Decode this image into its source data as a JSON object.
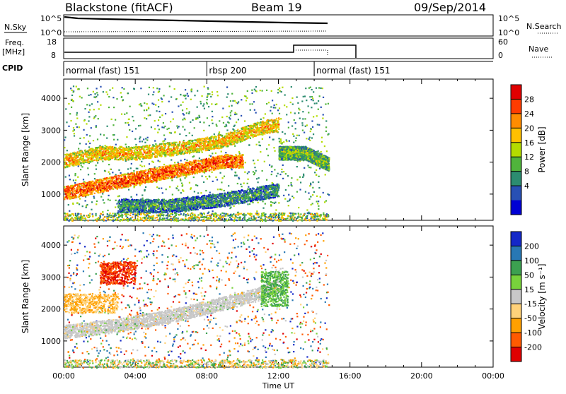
{
  "header": {
    "station": "Blackstone (fitACF)",
    "beam": "Beam 19",
    "date": "09/Sep/2014"
  },
  "strip_sky": {
    "left_label": "N.Sky",
    "left_ticks": [
      "10^5",
      "10^0"
    ],
    "right_ticks": [
      "10^5",
      "10^0"
    ],
    "right_label": "N.Search"
  },
  "strip_freq": {
    "left_label_1": "Freq.",
    "left_label_2": "[MHz]",
    "left_ticks": [
      "18",
      "8"
    ],
    "right_ticks": [
      "60",
      "0"
    ],
    "right_label": "Nave"
  },
  "strip_cpid": {
    "label": "CPID",
    "segments": [
      {
        "name": "normal (fast) 151",
        "start_hour": 0.0
      },
      {
        "name": "rbsp 200",
        "start_hour": 8.0
      },
      {
        "name": "normal (fast) 151",
        "start_hour": 14.0
      }
    ]
  },
  "chart_data": [
    {
      "type": "heatmap",
      "name": "power",
      "ylabel": "Slant Range [km]",
      "y_ticks": [
        1000,
        2000,
        3000,
        4000
      ],
      "ylim": [
        180,
        4600
      ],
      "xlim": [
        0,
        24
      ],
      "colorbar_label": "Power [dB]",
      "colorbar_ticks": [
        "28",
        "24",
        "20",
        "16",
        "12",
        "8",
        "4"
      ],
      "colorbar_colors": [
        "#e00000",
        "#ff3c00",
        "#ff8c00",
        "#ffc000",
        "#b4dc00",
        "#50b43c",
        "#2c8c70",
        "#2850b4",
        "#0000d4"
      ],
      "bands": [
        {
          "t": [
            0.0,
            3.0,
            6.0,
            9.0,
            10.0
          ],
          "r": [
            1040,
            1400,
            1730,
            2050,
            2050
          ],
          "value": 26
        },
        {
          "t": [
            0.0,
            2.0,
            4.0,
            7.0,
            9.0,
            11.0,
            12.0
          ],
          "r": [
            2050,
            2300,
            2300,
            2500,
            2700,
            3100,
            3200
          ],
          "value": 20
        },
        {
          "t": [
            3.0,
            6.0,
            9.0,
            12.0
          ],
          "r": [
            650,
            650,
            850,
            1150
          ],
          "value": 8
        },
        {
          "t": [
            12.0,
            13.5,
            14.8
          ],
          "r": [
            2300,
            2300,
            1950
          ],
          "value": 12
        }
      ]
    },
    {
      "type": "heatmap",
      "name": "velocity",
      "ylabel": "Slant Range [km]",
      "y_ticks": [
        1000,
        2000,
        3000,
        4000
      ],
      "ylim": [
        180,
        4600
      ],
      "xlim": [
        0,
        24
      ],
      "xlabel": "Time UT",
      "x_ticks": [
        "00:00",
        "04:00",
        "08:00",
        "12:00",
        "16:00",
        "20:00",
        "00:00"
      ],
      "colorbar_label": "Velocity [m s⁻¹]",
      "colorbar_ticks": [
        "200",
        "100",
        "50",
        "15",
        "-15",
        "-50",
        "-100",
        "-200"
      ],
      "colorbar_colors": [
        "#1428c8",
        "#2878b4",
        "#3ca050",
        "#78d23c",
        "#c8c8c8",
        "#ffd27a",
        "#ffa000",
        "#ff5a00",
        "#e00000"
      ],
      "ground_scatter_band": {
        "t": [
          0.0,
          3.0,
          6.0,
          9.0,
          11.0,
          12.0
        ],
        "r": [
          1300,
          1500,
          1800,
          2200,
          2500,
          2800
        ],
        "value": 0
      },
      "features": [
        {
          "t0": 2.0,
          "t1": 4.0,
          "r0": 2800,
          "r1": 3500,
          "value": -200
        },
        {
          "t0": 11.0,
          "t1": 12.5,
          "r0": 2100,
          "r1": 3200,
          "value": 50
        },
        {
          "t0": 0.0,
          "t1": 3.0,
          "r0": 1900,
          "r1": 2500,
          "value": -50
        }
      ]
    }
  ]
}
